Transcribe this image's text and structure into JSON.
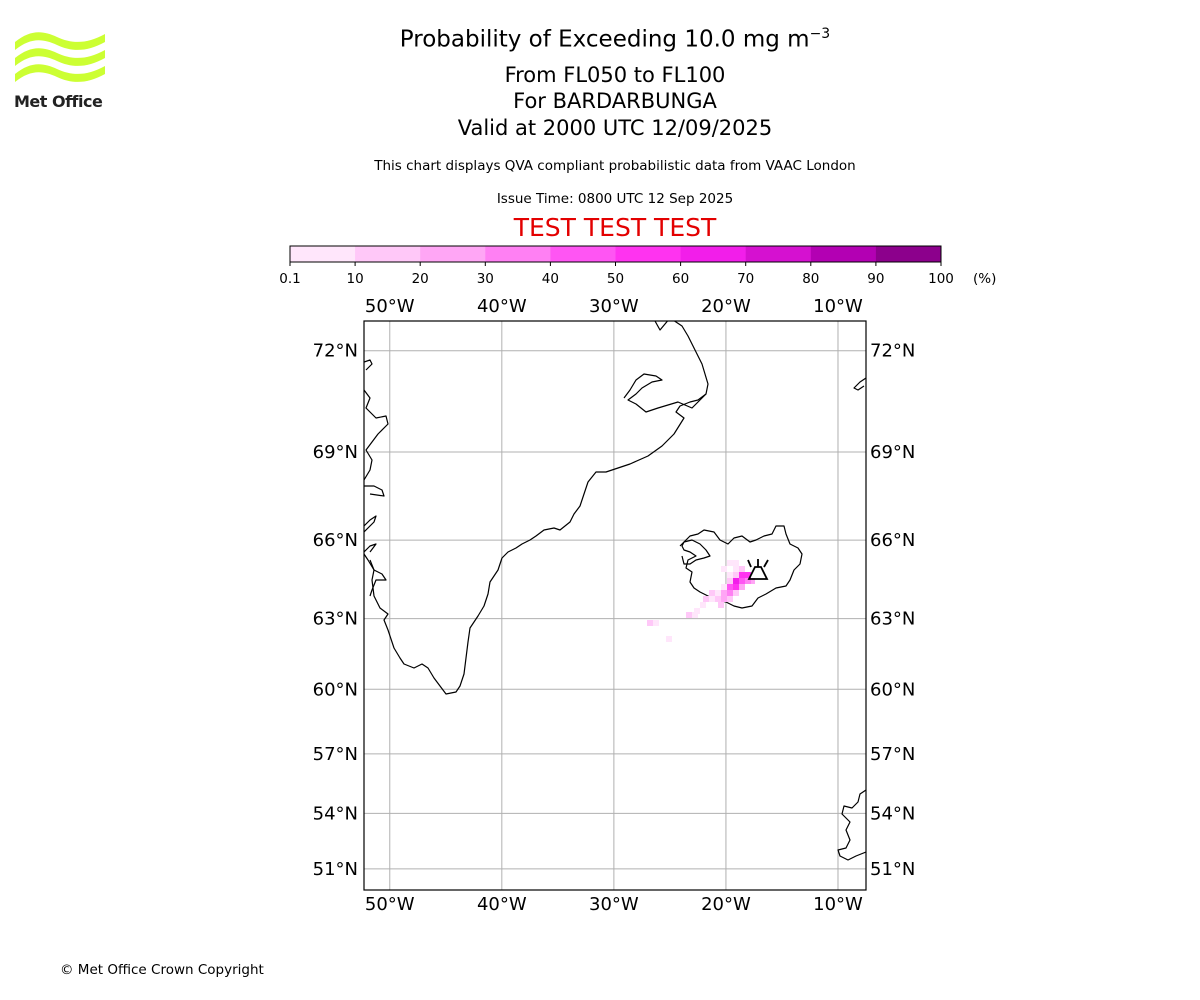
{
  "header": {
    "title_main": "Probability of Exceeding 10.0 mg m",
    "title_exp": "−3",
    "level_range": "From FL050 to FL100",
    "volcano": "For BARDARBUNGA",
    "valid": "Valid at 2000 UTC 12/09/2025",
    "note": "This chart displays QVA compliant probabilistic data from VAAC London",
    "issue": "Issue Time: 0800 UTC 12 Sep 2025",
    "test_banner": "TEST TEST TEST"
  },
  "logo": {
    "label": "Met Office",
    "color": "#ccff33"
  },
  "colorbar": {
    "ticks": [
      "0.1",
      "10",
      "20",
      "30",
      "40",
      "50",
      "60",
      "70",
      "80",
      "90",
      "100"
    ],
    "unit": "(%)",
    "colors": [
      "#ffe6fb",
      "#ffc8f8",
      "#ffa6f5",
      "#ff80f3",
      "#ff55f3",
      "#ff33f0",
      "#f21eea",
      "#d511d0",
      "#b300b3",
      "#8c008c",
      "#660066"
    ]
  },
  "map": {
    "lon_labels": [
      "50°W",
      "40°W",
      "30°W",
      "20°W",
      "10°W"
    ],
    "lat_labels": [
      "72°N",
      "69°N",
      "66°N",
      "63°N",
      "60°N",
      "57°N",
      "54°N",
      "51°N"
    ],
    "lat_values": [
      72,
      69,
      66,
      63,
      60,
      57,
      54,
      51
    ],
    "lon_values": [
      -50,
      -40,
      -30,
      -20,
      -10
    ],
    "grid": true,
    "volcano_name": "BARDARBUNGA"
  },
  "footer": {
    "copyright": "© Met Office Crown Copyright"
  }
}
